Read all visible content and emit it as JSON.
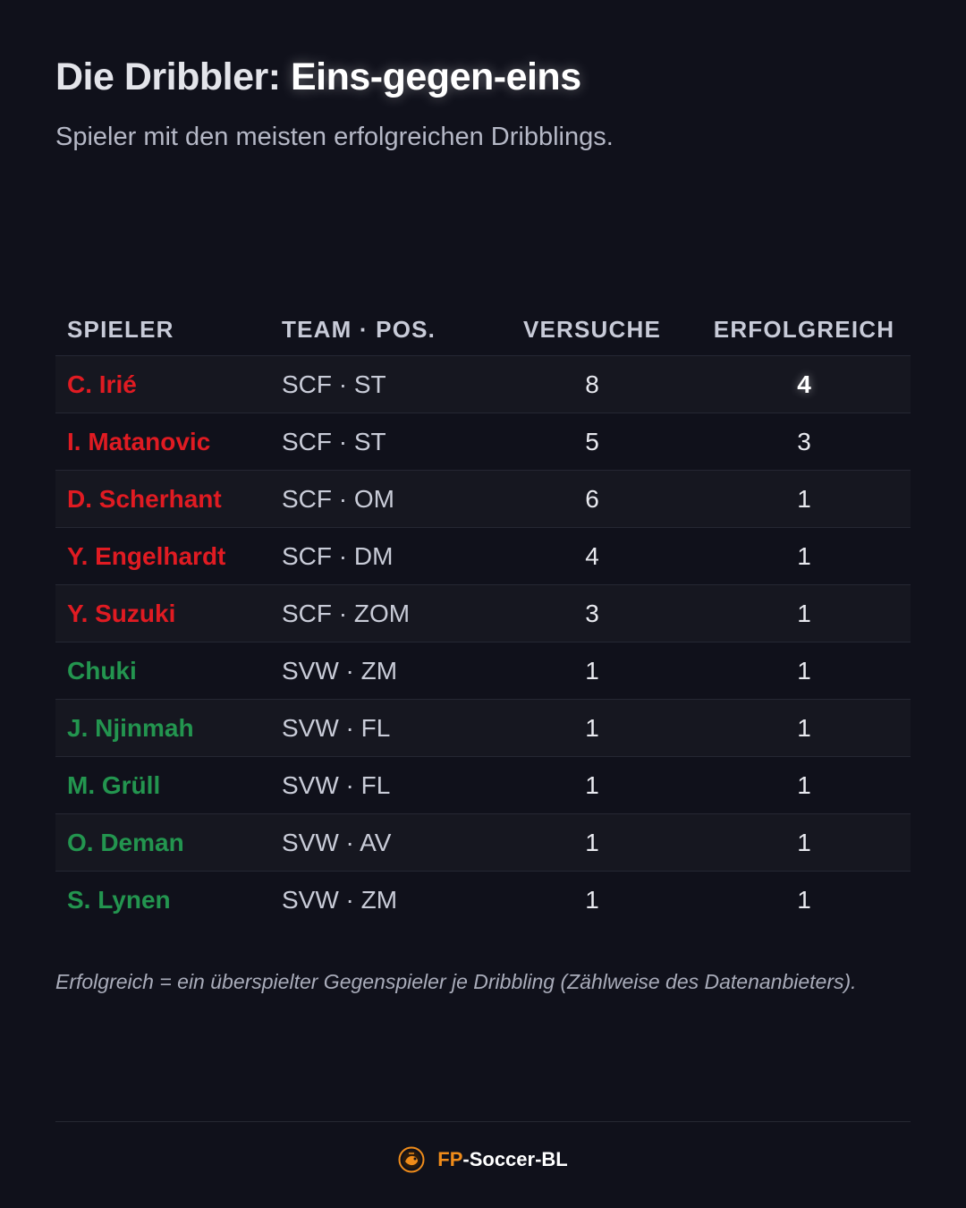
{
  "header": {
    "title_part1": "Die Dribbler: ",
    "title_part2": "Eins-gegen-eins",
    "subtitle": "Spieler mit den meisten erfolgreichen Dribblings."
  },
  "table": {
    "columns": [
      "SPIELER",
      "TEAM · POS.",
      "VERSUCHE",
      "ERFOLGREICH"
    ],
    "rows": [
      {
        "player": "C. Irié",
        "team_pos": "SCF · ST",
        "attempts": "8",
        "successful": "4",
        "team": "scf"
      },
      {
        "player": "I. Matanovic",
        "team_pos": "SCF · ST",
        "attempts": "5",
        "successful": "3",
        "team": "scf"
      },
      {
        "player": "D. Scherhant",
        "team_pos": "SCF · OM",
        "attempts": "6",
        "successful": "1",
        "team": "scf"
      },
      {
        "player": "Y. Engelhardt",
        "team_pos": "SCF · DM",
        "attempts": "4",
        "successful": "1",
        "team": "scf"
      },
      {
        "player": "Y. Suzuki",
        "team_pos": "SCF · ZOM",
        "attempts": "3",
        "successful": "1",
        "team": "scf"
      },
      {
        "player": "Chuki",
        "team_pos": "SVW · ZM",
        "attempts": "1",
        "successful": "1",
        "team": "svw"
      },
      {
        "player": "J. Njinmah",
        "team_pos": "SVW · FL",
        "attempts": "1",
        "successful": "1",
        "team": "svw"
      },
      {
        "player": "M. Grüll",
        "team_pos": "SVW · FL",
        "attempts": "1",
        "successful": "1",
        "team": "svw"
      },
      {
        "player": "O. Deman",
        "team_pos": "SVW · AV",
        "attempts": "1",
        "successful": "1",
        "team": "svw"
      },
      {
        "player": "S. Lynen",
        "team_pos": "SVW · ZM",
        "attempts": "1",
        "successful": "1",
        "team": "svw"
      }
    ]
  },
  "note": "Erfolgreich = ein überspielter Gegenspieler je Dribbling (Zählweise des Datenanbieters).",
  "footer": {
    "brand_accent": "FP",
    "brand_rest": "-Soccer-BL",
    "logo_icon": "fp-soccer-bl-logo-icon"
  },
  "colors": {
    "background": "#10111b",
    "scf_red": "#e01b22",
    "svw_green": "#23954f",
    "brand_orange": "#f08c1a"
  }
}
